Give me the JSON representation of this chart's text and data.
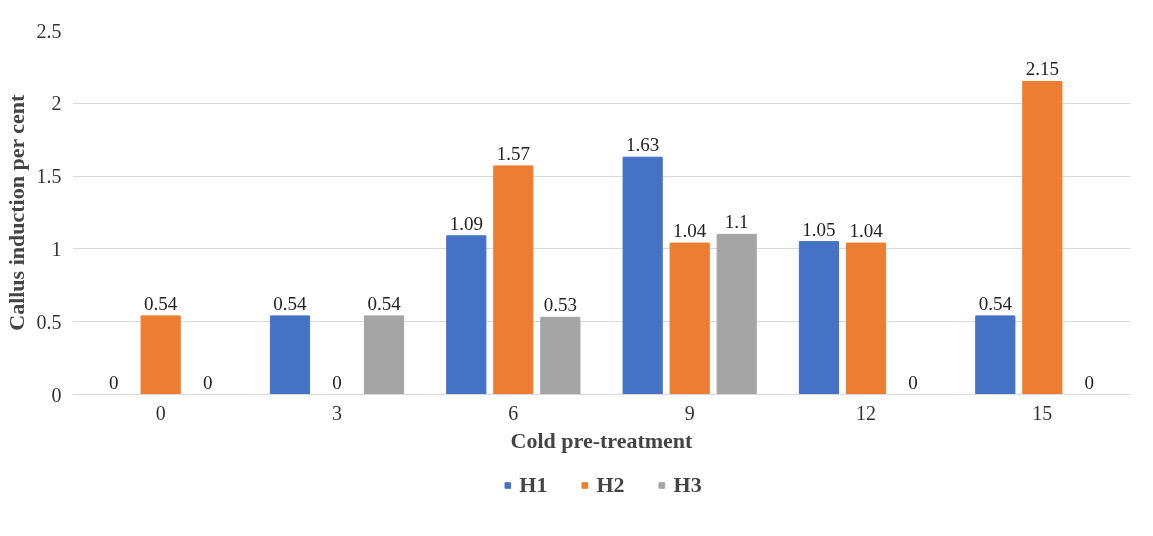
{
  "chart_data": {
    "type": "bar",
    "xlabel": "Cold pre-treatment",
    "ylabel": "Callus induction per cent",
    "categories": [
      "0",
      "3",
      "6",
      "9",
      "12",
      "15"
    ],
    "series": [
      {
        "name": "H1",
        "color": "#4472c4",
        "values": [
          0,
          0.54,
          1.09,
          1.63,
          1.05,
          0.54
        ]
      },
      {
        "name": "H2",
        "color": "#ed7d31",
        "values": [
          0.54,
          0,
          1.57,
          1.04,
          1.04,
          2.15
        ]
      },
      {
        "name": "H3",
        "color": "#a5a5a5",
        "values": [
          0,
          0.54,
          0.53,
          1.1,
          0,
          0
        ]
      }
    ],
    "ylim": [
      0,
      2.5
    ],
    "yticks": [
      0,
      0.5,
      1,
      1.5,
      2,
      2.5
    ],
    "grid": "y",
    "legend": "bottom",
    "data_labels": true
  }
}
